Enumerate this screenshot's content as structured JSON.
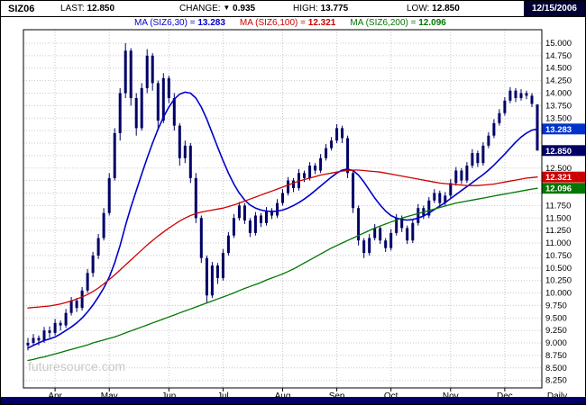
{
  "header": {
    "symbol": "SIZ06",
    "last_label": "LAST:",
    "last_value": "12.850",
    "change_label": "CHANGE:",
    "change_arrow": "▼",
    "change_value": "0.935",
    "high_label": "HIGH:",
    "high_value": "13.775",
    "low_label": "LOW:",
    "low_value": "12.850",
    "date": "12/15/2006"
  },
  "legend": {
    "ma30": {
      "label": "MA (SIZ6,30) =",
      "value": "13.283",
      "color": "#0000cc"
    },
    "ma100": {
      "label": "MA (SIZ6,100) =",
      "value": "12.321",
      "color": "#cc0000"
    },
    "ma200": {
      "label": "MA (SIZ6,200) =",
      "value": "12.096",
      "color": "#007700"
    }
  },
  "watermark": "futuresource.com",
  "timeframe": "Daily",
  "months": [
    "Apr",
    "May",
    "Jun",
    "Jul",
    "Aug",
    "Sep",
    "Oct",
    "Nov",
    "Dec"
  ],
  "axis": {
    "price_min": 8.25,
    "price_max": 15.0,
    "step": 0.25,
    "decimals": 3
  },
  "colors": {
    "candle": "#000066",
    "grid": "#c8c8c8",
    "bottom_bar": "#000066",
    "date_box": "#000033"
  },
  "price_tags": [
    {
      "name": "ma30-tag",
      "value": 13.283,
      "color": "#0033cc"
    },
    {
      "name": "last-tag",
      "value": 12.85,
      "color": "#000066"
    },
    {
      "name": "ma100-tag",
      "value": 12.321,
      "color": "#cc0000"
    },
    {
      "name": "ma200-tag",
      "value": 12.096,
      "color": "#007700"
    }
  ],
  "chart_data": {
    "type": "candlestick",
    "title": "SIZ06 Daily with 30/100/200-period moving averages",
    "x_axis": "Apr 2006 - Dec 15 2006 (daily)",
    "ylim": [
      8.25,
      15.0
    ],
    "y_tick_step": 0.25,
    "grid": true,
    "legend_position": "top",
    "ohlc_format": [
      "open",
      "high",
      "low",
      "close"
    ],
    "month_indices": [
      5,
      15,
      26,
      36,
      47,
      57,
      67,
      78,
      88
    ],
    "candles_ohlc": [
      [
        8.95,
        9.1,
        8.85,
        9.0
      ],
      [
        9.0,
        9.18,
        8.95,
        9.1
      ],
      [
        9.1,
        9.15,
        8.95,
        9.05
      ],
      [
        9.05,
        9.32,
        9.0,
        9.25
      ],
      [
        9.25,
        9.33,
        9.1,
        9.2
      ],
      [
        9.2,
        9.48,
        9.15,
        9.4
      ],
      [
        9.4,
        9.45,
        9.25,
        9.35
      ],
      [
        9.35,
        9.68,
        9.3,
        9.6
      ],
      [
        9.6,
        9.92,
        9.55,
        9.85
      ],
      [
        9.85,
        9.9,
        9.62,
        9.7
      ],
      [
        9.7,
        10.12,
        9.65,
        10.05
      ],
      [
        10.05,
        10.48,
        10.0,
        10.4
      ],
      [
        10.4,
        10.82,
        10.32,
        10.75
      ],
      [
        10.75,
        11.18,
        10.68,
        11.1
      ],
      [
        11.1,
        11.7,
        11.05,
        11.6
      ],
      [
        11.6,
        12.4,
        11.55,
        12.3
      ],
      [
        12.3,
        13.3,
        12.25,
        13.2
      ],
      [
        13.2,
        14.1,
        13.05,
        14.0
      ],
      [
        14.0,
        15.0,
        13.9,
        14.85
      ],
      [
        14.85,
        14.9,
        13.75,
        13.9
      ],
      [
        13.9,
        14.0,
        13.15,
        13.3
      ],
      [
        13.3,
        14.2,
        13.25,
        14.1
      ],
      [
        14.1,
        14.88,
        14.0,
        14.75
      ],
      [
        14.75,
        14.8,
        14.05,
        14.2
      ],
      [
        14.2,
        14.25,
        13.3,
        13.45
      ],
      [
        13.45,
        14.4,
        13.4,
        14.3
      ],
      [
        14.3,
        14.35,
        13.8,
        13.9
      ],
      [
        13.9,
        14.0,
        13.25,
        13.35
      ],
      [
        13.35,
        13.4,
        12.55,
        12.7
      ],
      [
        12.7,
        13.05,
        12.6,
        12.95
      ],
      [
        12.95,
        13.0,
        12.2,
        12.3
      ],
      [
        12.3,
        12.4,
        11.4,
        11.5
      ],
      [
        11.5,
        11.55,
        10.6,
        10.7
      ],
      [
        10.7,
        10.75,
        9.8,
        9.95
      ],
      [
        9.95,
        10.62,
        9.9,
        10.55
      ],
      [
        10.55,
        10.6,
        10.18,
        10.3
      ],
      [
        10.3,
        10.88,
        10.25,
        10.8
      ],
      [
        10.8,
        11.22,
        10.75,
        11.15
      ],
      [
        11.15,
        11.58,
        11.1,
        11.5
      ],
      [
        11.5,
        11.82,
        11.45,
        11.75
      ],
      [
        11.75,
        11.8,
        11.38,
        11.45
      ],
      [
        11.45,
        11.5,
        11.12,
        11.2
      ],
      [
        11.2,
        11.62,
        11.15,
        11.55
      ],
      [
        11.55,
        11.6,
        11.32,
        11.4
      ],
      [
        11.4,
        11.72,
        11.35,
        11.65
      ],
      [
        11.65,
        11.7,
        11.48,
        11.55
      ],
      [
        11.55,
        11.88,
        11.5,
        11.8
      ],
      [
        11.8,
        12.08,
        11.75,
        12.0
      ],
      [
        12.0,
        12.32,
        11.95,
        12.25
      ],
      [
        12.25,
        12.3,
        12.02,
        12.1
      ],
      [
        12.1,
        12.48,
        12.05,
        12.4
      ],
      [
        12.4,
        12.45,
        12.22,
        12.3
      ],
      [
        12.3,
        12.62,
        12.25,
        12.55
      ],
      [
        12.55,
        12.6,
        12.38,
        12.45
      ],
      [
        12.45,
        12.78,
        12.4,
        12.7
      ],
      [
        12.7,
        12.98,
        12.65,
        12.9
      ],
      [
        12.9,
        13.12,
        12.85,
        13.05
      ],
      [
        13.05,
        13.38,
        13.0,
        13.3
      ],
      [
        13.3,
        13.35,
        13.0,
        13.1
      ],
      [
        13.1,
        13.15,
        12.3,
        12.4
      ],
      [
        12.4,
        12.45,
        11.6,
        11.7
      ],
      [
        11.7,
        11.75,
        10.95,
        11.05
      ],
      [
        11.05,
        11.1,
        10.7,
        10.8
      ],
      [
        10.8,
        11.18,
        10.75,
        11.1
      ],
      [
        11.1,
        11.38,
        11.05,
        11.3
      ],
      [
        11.3,
        11.35,
        10.98,
        11.05
      ],
      [
        11.05,
        11.1,
        10.82,
        10.9
      ],
      [
        10.9,
        11.28,
        10.85,
        11.2
      ],
      [
        11.2,
        11.58,
        11.15,
        11.5
      ],
      [
        11.5,
        11.55,
        11.22,
        11.3
      ],
      [
        11.3,
        11.35,
        10.98,
        11.05
      ],
      [
        11.05,
        11.48,
        11.0,
        11.4
      ],
      [
        11.4,
        11.78,
        11.35,
        11.7
      ],
      [
        11.7,
        11.75,
        11.48,
        11.55
      ],
      [
        11.55,
        11.92,
        11.5,
        11.85
      ],
      [
        11.85,
        12.08,
        11.8,
        12.0
      ],
      [
        12.0,
        12.05,
        11.72,
        11.8
      ],
      [
        11.8,
        12.02,
        11.75,
        11.95
      ],
      [
        11.95,
        12.28,
        11.9,
        12.2
      ],
      [
        12.2,
        12.52,
        12.15,
        12.45
      ],
      [
        12.45,
        12.5,
        12.18,
        12.25
      ],
      [
        12.25,
        12.62,
        12.2,
        12.55
      ],
      [
        12.55,
        12.88,
        12.5,
        12.8
      ],
      [
        12.8,
        12.85,
        12.52,
        12.6
      ],
      [
        12.6,
        13.02,
        12.55,
        12.95
      ],
      [
        12.95,
        13.22,
        12.9,
        13.15
      ],
      [
        13.15,
        13.48,
        13.1,
        13.4
      ],
      [
        13.4,
        13.68,
        13.35,
        13.6
      ],
      [
        13.6,
        13.92,
        13.55,
        13.85
      ],
      [
        13.85,
        14.12,
        13.8,
        14.05
      ],
      [
        14.05,
        14.1,
        13.82,
        13.9
      ],
      [
        13.9,
        14.08,
        13.85,
        14.0
      ],
      [
        14.0,
        14.05,
        13.88,
        13.95
      ],
      [
        13.95,
        14.0,
        13.72,
        13.785
      ],
      [
        13.775,
        13.775,
        12.85,
        12.85
      ]
    ],
    "series": [
      {
        "name": "MA (SIZ6,30)",
        "slug": "ma30-line",
        "color": "#0000cc",
        "last": 13.283,
        "values": [
          8.9,
          8.95,
          9.0,
          9.05,
          9.08,
          9.12,
          9.18,
          9.25,
          9.32,
          9.4,
          9.5,
          9.62,
          9.76,
          9.92,
          10.1,
          10.32,
          10.6,
          10.95,
          11.35,
          11.72,
          12.05,
          12.38,
          12.7,
          13.0,
          13.28,
          13.52,
          13.72,
          13.88,
          13.98,
          14.02,
          14.0,
          13.9,
          13.72,
          13.48,
          13.2,
          12.92,
          12.65,
          12.4,
          12.18,
          12.0,
          11.86,
          11.76,
          11.7,
          11.66,
          11.64,
          11.63,
          11.64,
          11.66,
          11.7,
          11.75,
          11.81,
          11.88,
          11.96,
          12.05,
          12.14,
          12.23,
          12.32,
          12.4,
          12.46,
          12.48,
          12.45,
          12.36,
          12.22,
          12.06,
          11.9,
          11.76,
          11.64,
          11.55,
          11.5,
          11.47,
          11.46,
          11.47,
          11.5,
          11.54,
          11.6,
          11.67,
          11.74,
          11.81,
          11.89,
          11.97,
          12.05,
          12.13,
          12.21,
          12.29,
          12.37,
          12.46,
          12.56,
          12.67,
          12.78,
          12.9,
          13.02,
          13.12,
          13.2,
          13.26,
          13.283
        ]
      },
      {
        "name": "MA (SIZ6,100)",
        "slug": "ma100-line",
        "color": "#cc0000",
        "last": 12.321,
        "values": [
          9.7,
          9.71,
          9.72,
          9.73,
          9.74,
          9.76,
          9.78,
          9.81,
          9.84,
          9.88,
          9.92,
          9.97,
          10.03,
          10.1,
          10.18,
          10.27,
          10.36,
          10.46,
          10.56,
          10.66,
          10.76,
          10.86,
          10.96,
          11.05,
          11.14,
          11.22,
          11.3,
          11.37,
          11.44,
          11.5,
          11.55,
          11.59,
          11.62,
          11.64,
          11.66,
          11.68,
          11.7,
          11.73,
          11.76,
          11.8,
          11.84,
          11.88,
          11.92,
          11.96,
          12.0,
          12.04,
          12.08,
          12.12,
          12.16,
          12.2,
          12.24,
          12.27,
          12.3,
          12.33,
          12.36,
          12.38,
          12.4,
          12.42,
          12.44,
          12.45,
          12.46,
          12.46,
          12.45,
          12.44,
          12.43,
          12.42,
          12.4,
          12.38,
          12.36,
          12.34,
          12.32,
          12.3,
          12.28,
          12.26,
          12.24,
          12.22,
          12.2,
          12.19,
          12.18,
          12.17,
          12.16,
          12.15,
          12.15,
          12.15,
          12.16,
          12.17,
          12.18,
          12.2,
          12.22,
          12.24,
          12.26,
          12.28,
          12.3,
          12.31,
          12.321
        ]
      },
      {
        "name": "MA (SIZ6,200)",
        "slug": "ma200-line",
        "color": "#007700",
        "last": 12.096,
        "values": [
          8.65,
          8.67,
          8.7,
          8.72,
          8.75,
          8.78,
          8.81,
          8.84,
          8.87,
          8.9,
          8.93,
          8.96,
          9.0,
          9.03,
          9.06,
          9.09,
          9.12,
          9.16,
          9.2,
          9.24,
          9.28,
          9.32,
          9.36,
          9.4,
          9.44,
          9.48,
          9.52,
          9.56,
          9.6,
          9.64,
          9.68,
          9.72,
          9.76,
          9.8,
          9.84,
          9.88,
          9.92,
          9.96,
          10.0,
          10.05,
          10.09,
          10.13,
          10.17,
          10.21,
          10.26,
          10.3,
          10.34,
          10.38,
          10.43,
          10.48,
          10.54,
          10.6,
          10.66,
          10.72,
          10.78,
          10.84,
          10.9,
          10.95,
          11.0,
          11.05,
          11.1,
          11.15,
          11.2,
          11.25,
          11.3,
          11.34,
          11.38,
          11.42,
          11.46,
          11.5,
          11.53,
          11.56,
          11.59,
          11.62,
          11.65,
          11.68,
          11.71,
          11.74,
          11.77,
          11.8,
          11.82,
          11.84,
          11.86,
          11.88,
          11.9,
          11.92,
          11.94,
          11.96,
          11.98,
          12.0,
          12.02,
          12.04,
          12.06,
          12.08,
          12.096
        ]
      }
    ]
  }
}
